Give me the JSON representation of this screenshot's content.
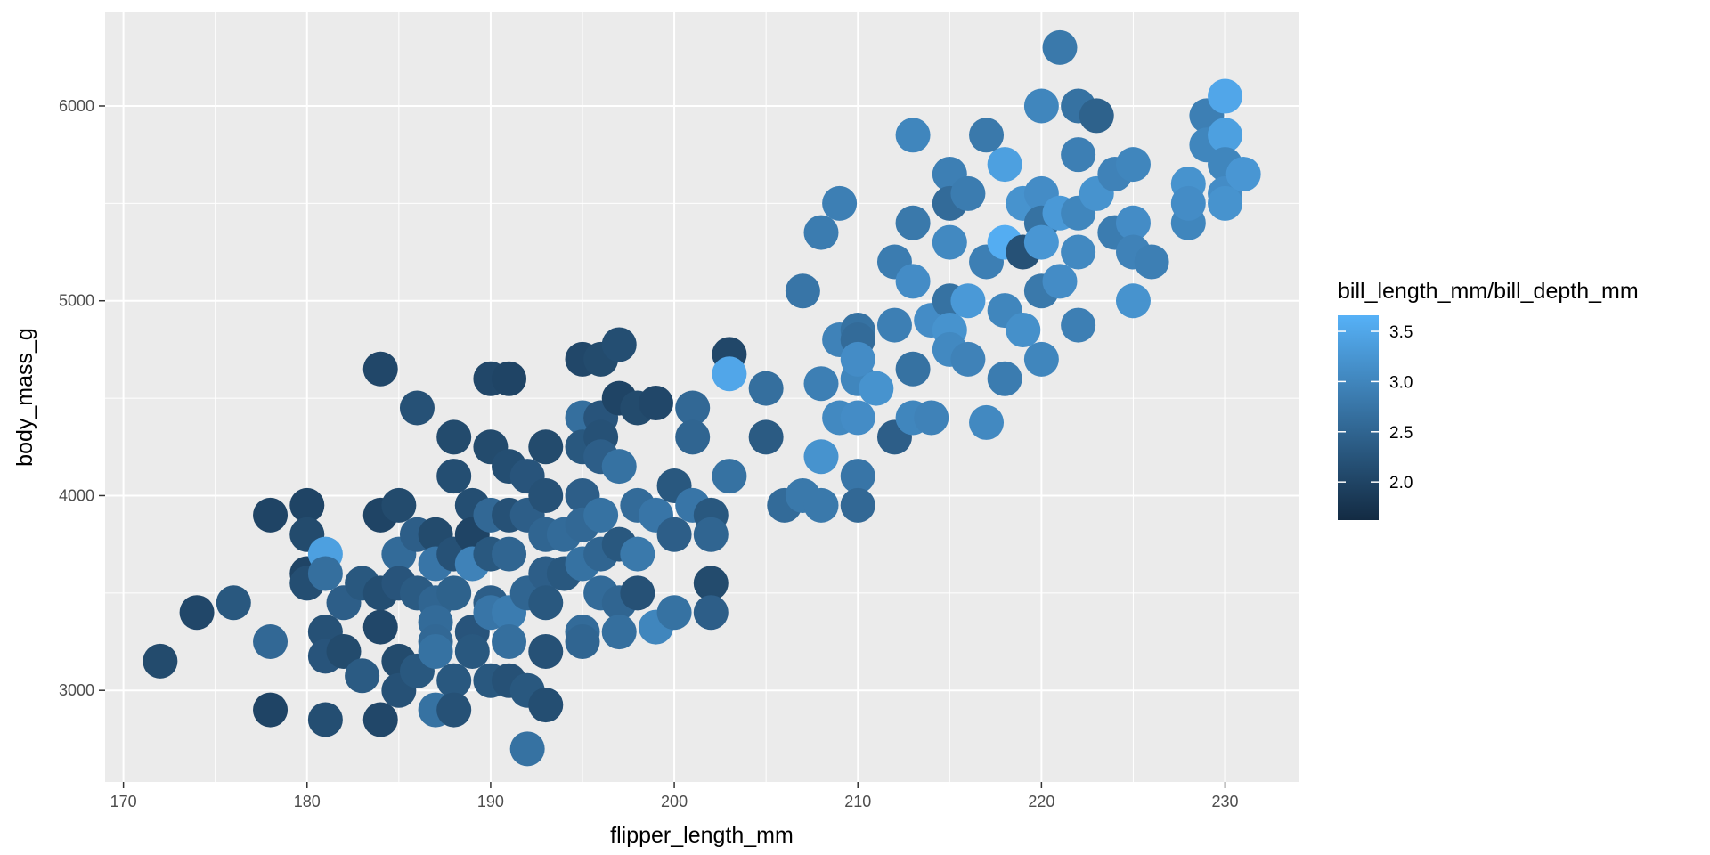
{
  "chart_data": {
    "type": "scatter",
    "title": "",
    "xlabel": "flipper_length_mm",
    "ylabel": "body_mass_g",
    "xlim": [
      169,
      234
    ],
    "ylim": [
      2530,
      6480
    ],
    "x_ticks": [
      170,
      180,
      190,
      200,
      210,
      220,
      230
    ],
    "y_ticks": [
      3000,
      4000,
      5000,
      6000
    ],
    "grid": true,
    "panel_background": "#ebebeb",
    "grid_color": "#ffffff",
    "legend": {
      "title": "bill_length_mm/bill_depth_mm",
      "placement": "right",
      "ticks": [
        2.0,
        2.5,
        3.0,
        3.5
      ],
      "tick_labels": [
        "2.0",
        "2.5",
        "3.0",
        "3.5"
      ],
      "range": [
        1.62,
        3.66
      ],
      "color_low": "#132b43",
      "color_high": "#56b1f7"
    },
    "points": [
      [
        172,
        3150,
        2.1
      ],
      [
        174,
        3400,
        2.05
      ],
      [
        176,
        3450,
        2.3
      ],
      [
        178,
        3250,
        2.55
      ],
      [
        178,
        3900,
        2.0
      ],
      [
        178,
        2900,
        2.0
      ],
      [
        180,
        3950,
        2.0
      ],
      [
        180,
        3800,
        2.1
      ],
      [
        180,
        3600,
        2.0
      ],
      [
        180,
        3550,
        2.15
      ],
      [
        181,
        3700,
        3.4
      ],
      [
        181,
        3600,
        2.65
      ],
      [
        181,
        3300,
        2.2
      ],
      [
        181,
        3175,
        2.25
      ],
      [
        181,
        2850,
        2.15
      ],
      [
        182,
        3200,
        2.1
      ],
      [
        182,
        3450,
        2.4
      ],
      [
        183,
        3550,
        2.3
      ],
      [
        183,
        3075,
        2.35
      ],
      [
        184,
        4650,
        2.05
      ],
      [
        184,
        3900,
        2.0
      ],
      [
        184,
        3500,
        2.15
      ],
      [
        184,
        3325,
        2.05
      ],
      [
        184,
        2850,
        2.05
      ],
      [
        185,
        3950,
        2.1
      ],
      [
        185,
        3700,
        2.6
      ],
      [
        185,
        3550,
        2.25
      ],
      [
        185,
        3150,
        2.1
      ],
      [
        185,
        3000,
        2.2
      ],
      [
        186,
        4450,
        2.2
      ],
      [
        186,
        3800,
        2.4
      ],
      [
        186,
        3500,
        2.35
      ],
      [
        186,
        3100,
        2.3
      ],
      [
        187,
        3800,
        2.1
      ],
      [
        187,
        3650,
        2.75
      ],
      [
        187,
        3450,
        2.5
      ],
      [
        187,
        3350,
        2.6
      ],
      [
        187,
        3250,
        2.55
      ],
      [
        187,
        3200,
        2.7
      ],
      [
        187,
        2900,
        2.7
      ],
      [
        188,
        4300,
        2.1
      ],
      [
        188,
        4100,
        2.15
      ],
      [
        188,
        3700,
        2.2
      ],
      [
        188,
        3500,
        2.45
      ],
      [
        188,
        3050,
        2.3
      ],
      [
        188,
        2900,
        2.2
      ],
      [
        189,
        3950,
        2.15
      ],
      [
        189,
        3800,
        2.0
      ],
      [
        189,
        3650,
        2.95
      ],
      [
        189,
        3300,
        2.25
      ],
      [
        189,
        3200,
        2.3
      ],
      [
        190,
        4600,
        2.05
      ],
      [
        190,
        4250,
        2.1
      ],
      [
        190,
        3900,
        2.55
      ],
      [
        190,
        3700,
        2.3
      ],
      [
        190,
        3450,
        2.4
      ],
      [
        190,
        3050,
        2.3
      ],
      [
        190,
        3400,
        2.75
      ],
      [
        191,
        4600,
        2.0
      ],
      [
        191,
        4150,
        2.15
      ],
      [
        191,
        3900,
        2.2
      ],
      [
        191,
        3700,
        2.5
      ],
      [
        191,
        3400,
        2.85
      ],
      [
        191,
        3250,
        2.65
      ],
      [
        191,
        3050,
        2.2
      ],
      [
        192,
        4100,
        2.25
      ],
      [
        192,
        3900,
        2.4
      ],
      [
        192,
        3500,
        2.5
      ],
      [
        192,
        3000,
        2.3
      ],
      [
        192,
        2700,
        2.7
      ],
      [
        193,
        4250,
        2.1
      ],
      [
        193,
        4000,
        2.2
      ],
      [
        193,
        3800,
        2.5
      ],
      [
        193,
        3600,
        2.4
      ],
      [
        193,
        3450,
        2.3
      ],
      [
        193,
        3200,
        2.2
      ],
      [
        193,
        2925,
        2.15
      ],
      [
        194,
        3800,
        2.6
      ],
      [
        194,
        3600,
        2.3
      ],
      [
        195,
        4700,
        2.05
      ],
      [
        195,
        4400,
        2.65
      ],
      [
        195,
        4250,
        2.3
      ],
      [
        195,
        4000,
        2.4
      ],
      [
        195,
        3850,
        2.55
      ],
      [
        195,
        3650,
        2.7
      ],
      [
        195,
        3300,
        2.6
      ],
      [
        195,
        3250,
        2.5
      ],
      [
        196,
        4700,
        2.1
      ],
      [
        196,
        4400,
        2.25
      ],
      [
        196,
        4300,
        2.2
      ],
      [
        196,
        4200,
        2.4
      ],
      [
        196,
        3900,
        2.7
      ],
      [
        196,
        3700,
        2.5
      ],
      [
        196,
        3500,
        2.6
      ],
      [
        197,
        4775,
        2.15
      ],
      [
        197,
        4500,
        2.0
      ],
      [
        197,
        4150,
        2.7
      ],
      [
        197,
        3750,
        2.3
      ],
      [
        197,
        3450,
        2.5
      ],
      [
        197,
        3300,
        2.65
      ],
      [
        198,
        4450,
        2.1
      ],
      [
        198,
        3950,
        2.6
      ],
      [
        198,
        3700,
        2.8
      ],
      [
        198,
        3500,
        2.2
      ],
      [
        199,
        4475,
        2.05
      ],
      [
        199,
        3900,
        2.75
      ],
      [
        199,
        3325,
        3.0
      ],
      [
        200,
        4050,
        2.3
      ],
      [
        200,
        3800,
        2.4
      ],
      [
        200,
        3400,
        2.7
      ],
      [
        201,
        4450,
        2.55
      ],
      [
        201,
        4300,
        2.5
      ],
      [
        201,
        3950,
        2.75
      ],
      [
        202,
        3900,
        2.3
      ],
      [
        202,
        3800,
        2.5
      ],
      [
        202,
        3550,
        2.1
      ],
      [
        202,
        3400,
        2.4
      ],
      [
        203,
        4725,
        2.05
      ],
      [
        203,
        4625,
        3.5
      ],
      [
        203,
        4100,
        2.7
      ],
      [
        205,
        4550,
        2.65
      ],
      [
        205,
        4300,
        2.35
      ],
      [
        206,
        3950,
        2.6
      ],
      [
        207,
        5050,
        2.75
      ],
      [
        207,
        4000,
        2.8
      ],
      [
        208,
        5350,
        2.85
      ],
      [
        208,
        4575,
        2.9
      ],
      [
        208,
        4200,
        3.2
      ],
      [
        208,
        3950,
        2.8
      ],
      [
        209,
        5500,
        2.9
      ],
      [
        209,
        4800,
        2.95
      ],
      [
        209,
        4400,
        3.05
      ],
      [
        210,
        4850,
        2.7
      ],
      [
        210,
        4600,
        3.0
      ],
      [
        210,
        4400,
        3.1
      ],
      [
        210,
        4100,
        2.75
      ],
      [
        210,
        3950,
        2.55
      ],
      [
        210,
        4800,
        2.6
      ],
      [
        210,
        4700,
        3.1
      ],
      [
        211,
        4550,
        3.2
      ],
      [
        212,
        5200,
        2.85
      ],
      [
        212,
        4875,
        2.9
      ],
      [
        212,
        4300,
        2.4
      ],
      [
        213,
        5850,
        3.0
      ],
      [
        213,
        5400,
        2.8
      ],
      [
        213,
        5100,
        3.1
      ],
      [
        213,
        4650,
        2.7
      ],
      [
        213,
        4400,
        3.0
      ],
      [
        214,
        4900,
        3.1
      ],
      [
        214,
        4400,
        2.95
      ],
      [
        215,
        5650,
        2.9
      ],
      [
        215,
        5500,
        2.6
      ],
      [
        215,
        5300,
        3.05
      ],
      [
        215,
        5000,
        2.7
      ],
      [
        215,
        4850,
        3.2
      ],
      [
        215,
        4750,
        3.05
      ],
      [
        216,
        5550,
        2.85
      ],
      [
        216,
        5000,
        3.3
      ],
      [
        216,
        4700,
        2.95
      ],
      [
        217,
        5850,
        2.8
      ],
      [
        217,
        5200,
        2.9
      ],
      [
        217,
        4375,
        3.05
      ],
      [
        218,
        5700,
        3.4
      ],
      [
        218,
        5300,
        3.6
      ],
      [
        218,
        4950,
        3.0
      ],
      [
        218,
        4600,
        2.85
      ],
      [
        219,
        5500,
        3.2
      ],
      [
        219,
        5250,
        2.2
      ],
      [
        219,
        4850,
        3.15
      ],
      [
        220,
        6000,
        3.0
      ],
      [
        220,
        5550,
        3.1
      ],
      [
        220,
        5400,
        2.7
      ],
      [
        220,
        5300,
        3.25
      ],
      [
        220,
        5050,
        2.8
      ],
      [
        220,
        4700,
        3.0
      ],
      [
        221,
        6300,
        2.8
      ],
      [
        221,
        5450,
        3.3
      ],
      [
        221,
        5100,
        3.1
      ],
      [
        222,
        6000,
        2.7
      ],
      [
        222,
        5750,
        2.9
      ],
      [
        222,
        5450,
        3.0
      ],
      [
        222,
        5250,
        3.05
      ],
      [
        222,
        4875,
        2.9
      ],
      [
        223,
        5950,
        2.45
      ],
      [
        223,
        5550,
        3.2
      ],
      [
        224,
        5650,
        2.95
      ],
      [
        224,
        5350,
        2.85
      ],
      [
        225,
        5700,
        3.0
      ],
      [
        225,
        5400,
        3.1
      ],
      [
        225,
        5250,
        2.95
      ],
      [
        225,
        5000,
        3.2
      ],
      [
        226,
        5200,
        2.9
      ],
      [
        228,
        5600,
        3.2
      ],
      [
        228,
        5400,
        3.0
      ],
      [
        228,
        5500,
        3.1
      ],
      [
        229,
        5950,
        2.9
      ],
      [
        229,
        5800,
        3.0
      ],
      [
        230,
        6050,
        3.5
      ],
      [
        230,
        5850,
        3.4
      ],
      [
        230,
        5700,
        3.0
      ],
      [
        230,
        5550,
        3.1
      ],
      [
        230,
        5500,
        3.2
      ],
      [
        231,
        5650,
        3.25
      ]
    ]
  }
}
